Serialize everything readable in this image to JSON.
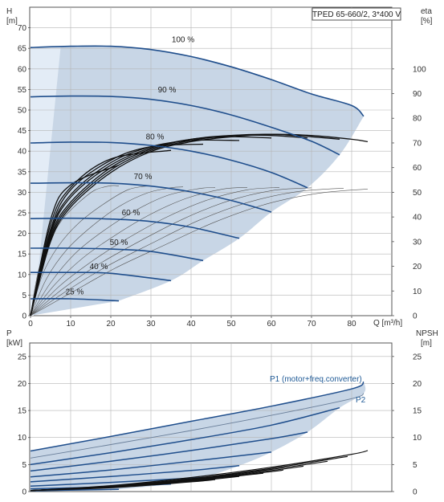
{
  "title": "TPED 65-660/2, 3*400 V",
  "colors": {
    "envelope": "#c8d6e6",
    "envelope_light": "#e3ecf6",
    "curve": "#1f4e8c",
    "efficiency": "#111111",
    "grid": "#b5b5b5"
  },
  "chart_data": [
    {
      "type": "line",
      "panel": "head-efficiency",
      "x_label": "Q [m³/h]",
      "y_left_label": [
        "H",
        "[m]"
      ],
      "y_right_label": [
        "eta",
        "[%]"
      ],
      "xlim": [
        0,
        90
      ],
      "ylim_left": [
        0,
        75
      ],
      "ylim_right": [
        0,
        125
      ],
      "x_ticks": [
        0,
        10,
        20,
        30,
        40,
        50,
        60,
        70,
        80
      ],
      "y_left_ticks": [
        0,
        5,
        10,
        15,
        20,
        25,
        30,
        35,
        40,
        45,
        50,
        55,
        60,
        65,
        70
      ],
      "y_right_ticks": [
        0,
        10,
        20,
        30,
        40,
        50,
        60,
        70,
        80,
        90,
        100
      ],
      "grid": true,
      "series": [
        {
          "name": "100 %",
          "x": [
            0,
            10,
            20,
            30,
            40,
            50,
            60,
            70,
            80,
            83
          ],
          "y": [
            65.2,
            65.5,
            65.5,
            64.7,
            63.0,
            60.5,
            57.4,
            53.9,
            51.1,
            48.5
          ]
        },
        {
          "name": "90 %",
          "x": [
            0,
            10,
            20,
            30,
            40,
            50,
            60,
            70,
            77
          ],
          "y": [
            53.2,
            53.4,
            53.3,
            52.6,
            51.1,
            48.8,
            45.8,
            42.4,
            39.1
          ]
        },
        {
          "name": "80 %",
          "x": [
            0,
            10,
            20,
            30,
            40,
            50,
            60,
            69
          ],
          "y": [
            42.0,
            42.2,
            42.1,
            41.4,
            40.0,
            37.8,
            34.8,
            31.1
          ]
        },
        {
          "name": "70 %",
          "x": [
            0,
            10,
            20,
            30,
            40,
            50,
            60
          ],
          "y": [
            32.2,
            32.3,
            32.2,
            31.5,
            30.1,
            28.0,
            25.2
          ]
        },
        {
          "name": "60 %",
          "x": [
            0,
            10,
            20,
            30,
            40,
            52
          ],
          "y": [
            23.6,
            23.7,
            23.5,
            22.9,
            21.5,
            18.8
          ]
        },
        {
          "name": "50 %",
          "x": [
            0,
            10,
            20,
            30,
            43
          ],
          "y": [
            16.4,
            16.4,
            16.2,
            15.6,
            13.4
          ]
        },
        {
          "name": "40 %",
          "x": [
            0,
            10,
            20,
            35
          ],
          "y": [
            10.5,
            10.5,
            10.3,
            8.5
          ]
        },
        {
          "name": "25 %",
          "x": [
            0,
            10,
            22
          ],
          "y": [
            4.1,
            4.1,
            3.6
          ]
        }
      ],
      "efficiency_series": [
        {
          "x": [
            0,
            5,
            10,
            20,
            30,
            40,
            50,
            60,
            70,
            80,
            84
          ],
          "eta": [
            0,
            30,
            44,
            58,
            66.5,
            70.5,
            72.5,
            73.5,
            73.0,
            71.5,
            70.5
          ]
        },
        {
          "x": [
            0,
            5,
            10,
            20,
            30,
            40,
            50,
            60,
            70,
            77
          ],
          "eta": [
            0,
            31,
            45,
            59,
            67,
            71,
            73,
            73.5,
            72.5,
            71.5
          ]
        },
        {
          "x": [
            0,
            5,
            10,
            20,
            30,
            40,
            50,
            60,
            69
          ],
          "eta": [
            0,
            32,
            46,
            60,
            67.5,
            71.5,
            73,
            73,
            72
          ]
        },
        {
          "x": [
            0,
            5,
            10,
            20,
            30,
            40,
            50,
            60
          ],
          "eta": [
            0,
            33,
            48,
            61,
            68,
            71.5,
            72.5,
            72
          ]
        },
        {
          "x": [
            0,
            5,
            10,
            20,
            30,
            40,
            52
          ],
          "eta": [
            0,
            34,
            49,
            62,
            68.5,
            71,
            71
          ]
        },
        {
          "x": [
            0,
            5,
            10,
            20,
            30,
            43
          ],
          "eta": [
            0,
            35,
            51,
            63,
            68.5,
            69.5
          ]
        },
        {
          "x": [
            0,
            5,
            10,
            20,
            35
          ],
          "eta": [
            0,
            37,
            52,
            63.5,
            67
          ]
        },
        {
          "x": [
            0,
            5,
            10,
            22
          ],
          "eta": [
            0,
            39,
            53,
            61
          ]
        }
      ],
      "thin_curves": [
        {
          "x": [
            0,
            2,
            5,
            8,
            12,
            16,
            20,
            22
          ],
          "y": [
            0,
            11,
            18.5,
            23.5,
            27.5,
            30.5,
            31.6,
            31.5
          ]
        },
        {
          "x": [
            0,
            3,
            7,
            12,
            18,
            24,
            28,
            30
          ],
          "y": [
            0,
            10,
            17,
            22.5,
            27,
            30.5,
            31.4,
            31.5
          ]
        },
        {
          "x": [
            0,
            4,
            9,
            15,
            22,
            29,
            35,
            38
          ],
          "y": [
            0,
            9,
            16,
            21.5,
            26.5,
            29.8,
            31.1,
            31.3
          ]
        },
        {
          "x": [
            0,
            5,
            11,
            18,
            26,
            34,
            42,
            46
          ],
          "y": [
            0,
            8,
            15,
            20.5,
            25.5,
            29.2,
            30.9,
            31.2
          ]
        },
        {
          "x": [
            0,
            6,
            13,
            21,
            30,
            39,
            48,
            54
          ],
          "y": [
            0,
            7.5,
            14,
            19.5,
            24.7,
            28.6,
            30.8,
            31.2
          ]
        },
        {
          "x": [
            0,
            7,
            15,
            24,
            34,
            44,
            54,
            62
          ],
          "y": [
            0,
            7,
            13,
            18.7,
            24,
            28.1,
            30.6,
            31.2
          ]
        },
        {
          "x": [
            0,
            8,
            17,
            27,
            38,
            49,
            60,
            70
          ],
          "y": [
            0,
            6.5,
            12.5,
            18,
            23.5,
            27.8,
            30.4,
            31.1
          ]
        },
        {
          "x": [
            0,
            9,
            19,
            30,
            42,
            54,
            66,
            78
          ],
          "y": [
            0,
            6,
            12,
            17.5,
            23.2,
            27.5,
            30.1,
            31
          ]
        },
        {
          "x": [
            0,
            10,
            21,
            33,
            46,
            59,
            72,
            84
          ],
          "y": [
            0,
            5.5,
            11.5,
            17,
            22.8,
            27.2,
            29.8,
            30.8
          ]
        }
      ],
      "curve_labels": [
        "100 %",
        "90 %",
        "80 %",
        "70 %",
        "60 %",
        "50 %",
        "40 %",
        "25 %"
      ]
    },
    {
      "type": "line",
      "panel": "power-npsh",
      "x_label": "",
      "y_left_label": [
        "P",
        "[kW]"
      ],
      "y_right_label": [
        "NPSH",
        "[m]"
      ],
      "xlim": [
        0,
        90
      ],
      "ylim_left": [
        0,
        27.5
      ],
      "ylim_right": [
        0,
        27.5
      ],
      "y_left_ticks": [
        0,
        5,
        10,
        15,
        20,
        25
      ],
      "y_right_ticks": [
        0,
        5,
        10,
        15,
        20,
        25
      ],
      "grid": true,
      "series_labels": [
        "P1 (motor+freq.converter)",
        "P2"
      ],
      "series": [
        {
          "name": "P1 (motor+freq.converter)",
          "x": [
            0,
            20,
            40,
            60,
            80,
            83
          ],
          "y": [
            7.5,
            10.2,
            13.0,
            15.8,
            19.0,
            20.3
          ]
        },
        {
          "name": "P2",
          "x": [
            0,
            20,
            40,
            60,
            80,
            83
          ],
          "y": [
            6.2,
            8.7,
            11.3,
            14.1,
            17.2,
            18.2
          ]
        },
        {
          "x": [
            0,
            20,
            40,
            60,
            77
          ],
          "y": [
            5.0,
            7.2,
            9.6,
            12.3,
            15.5
          ]
        },
        {
          "x": [
            0,
            20,
            40,
            60,
            69
          ],
          "y": [
            3.8,
            5.6,
            7.6,
            9.8,
            11.0
          ]
        },
        {
          "x": [
            0,
            20,
            40,
            60
          ],
          "y": [
            2.7,
            4.0,
            5.6,
            7.3
          ]
        },
        {
          "x": [
            0,
            20,
            40,
            52
          ],
          "y": [
            1.8,
            2.8,
            3.9,
            4.8
          ]
        },
        {
          "x": [
            0,
            20,
            43
          ],
          "y": [
            1.0,
            1.7,
            2.6
          ]
        },
        {
          "x": [
            0,
            20,
            35
          ],
          "y": [
            0.5,
            0.9,
            1.4
          ]
        },
        {
          "x": [
            0,
            22
          ],
          "y": [
            0.15,
            0.4
          ]
        }
      ],
      "npsh_series": [
        {
          "x": [
            0,
            20,
            40,
            60,
            80,
            84
          ],
          "y": [
            0.2,
            1.1,
            2.6,
            4.5,
            6.9,
            7.6
          ]
        },
        {
          "x": [
            0,
            20,
            40,
            60,
            79
          ],
          "y": [
            0.2,
            1.0,
            2.4,
            4.3,
            6.5
          ]
        },
        {
          "x": [
            0,
            20,
            40,
            60,
            74
          ],
          "y": [
            0.2,
            1.0,
            2.3,
            4.1,
            5.6
          ]
        },
        {
          "x": [
            0,
            20,
            40,
            60,
            68
          ],
          "y": [
            0.2,
            0.9,
            2.2,
            3.9,
            4.7
          ]
        },
        {
          "x": [
            0,
            20,
            40,
            60,
            63
          ],
          "y": [
            0.2,
            0.9,
            2.1,
            3.7,
            4.0
          ]
        },
        {
          "x": [
            0,
            20,
            40,
            58
          ],
          "y": [
            0.2,
            0.8,
            2.0,
            3.4
          ]
        },
        {
          "x": [
            0,
            20,
            40,
            52
          ],
          "y": [
            0.2,
            0.8,
            1.9,
            2.8
          ]
        },
        {
          "x": [
            0,
            20,
            40,
            46
          ],
          "y": [
            0.2,
            0.7,
            1.8,
            2.2
          ]
        }
      ]
    }
  ]
}
